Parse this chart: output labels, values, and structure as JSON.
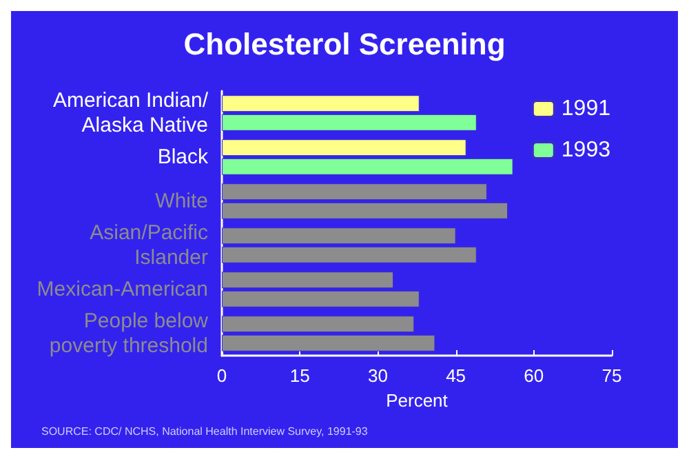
{
  "chart_data": {
    "type": "bar",
    "orientation": "horizontal",
    "title": "Cholesterol Screening",
    "xlabel": "Percent",
    "categories": [
      "American Indian/\nAlaska Native",
      "Black",
      "White",
      "Asian/Pacific\nIslander",
      "Mexican-American",
      "People below\npoverty threshold"
    ],
    "series": [
      {
        "name": "1991",
        "color": "#ffff88",
        "values": [
          38,
          47,
          51,
          45,
          33,
          37
        ],
        "colors": [
          "#ffff88",
          "#ffff88",
          "#8c8c8c",
          "#8c8c8c",
          "#8c8c8c",
          "#8c8c8c"
        ]
      },
      {
        "name": "1993",
        "color": "#80ff99",
        "values": [
          49,
          56,
          55,
          49,
          38,
          41
        ],
        "colors": [
          "#80ff99",
          "#80ff99",
          "#8c8c8c",
          "#8c8c8c",
          "#8c8c8c",
          "#8c8c8c"
        ]
      }
    ],
    "xlim": [
      0,
      75
    ],
    "xticks": [
      0,
      15,
      30,
      45,
      60,
      75
    ],
    "grid": false,
    "legend": "top right",
    "annotations": [
      "SOURCE: CDC/ NCHS, National Health Interview Survey, 1991-93"
    ]
  }
}
